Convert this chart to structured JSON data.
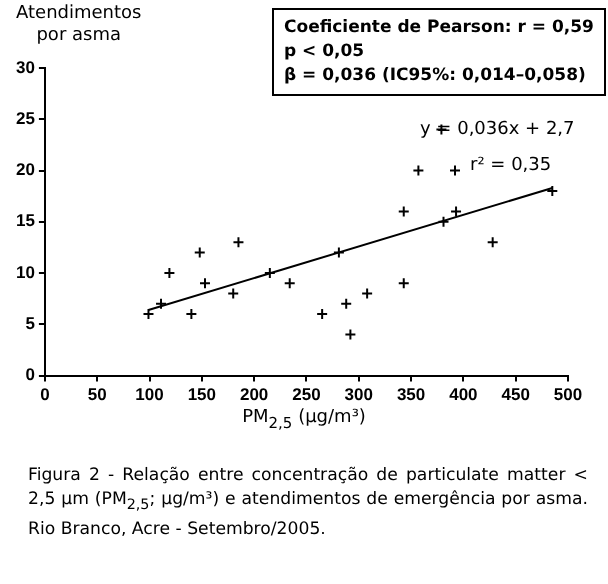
{
  "chart_data": {
    "type": "scatter",
    "ylabel": "Atendimentos\npor asma",
    "xlabel": "PM$_{2,5}$ (µg/m³)",
    "xlim": [
      0,
      500
    ],
    "xticks": [
      0,
      50,
      100,
      150,
      200,
      250,
      300,
      350,
      400,
      450,
      500
    ],
    "ylim": [
      0,
      30
    ],
    "yticks": [
      0,
      5,
      10,
      15,
      20,
      25,
      30
    ],
    "grid": false,
    "legend": false,
    "series": [
      {
        "type": "scatter",
        "color": "#000000",
        "marker": "cross",
        "x": [
          99,
          111,
          119,
          140,
          148,
          153,
          180,
          185,
          215,
          234,
          265,
          281,
          288,
          292,
          308,
          343,
          343,
          357,
          379,
          381,
          392,
          393,
          428,
          485
        ],
        "values": [
          6,
          7,
          10,
          6,
          12,
          9,
          8,
          13,
          10,
          9,
          6,
          12,
          7,
          4,
          8,
          16,
          9,
          20,
          24,
          15,
          20,
          16,
          13,
          18
        ]
      },
      {
        "type": "line",
        "color": "#000000",
        "marker": "none",
        "line_style": "solid",
        "x": [
          99,
          485
        ],
        "values": [
          6.4,
          18.3
        ]
      }
    ],
    "annotations": [
      "Coeficiente de Pearson: r = 0,59\np < 0,05\nβ = 0,036 (IC95%: 0,014–0,058)",
      "y = 0,036x + 2,7",
      "r² = 0,35",
      "Figura 2 - Relação entre concentração de particulate matter < 2,5 µm (PM$_{2,5}$; µg/m³) e atendimentos de emergência por asma. Rio Branco, Acre - Setembro/2005."
    ]
  }
}
